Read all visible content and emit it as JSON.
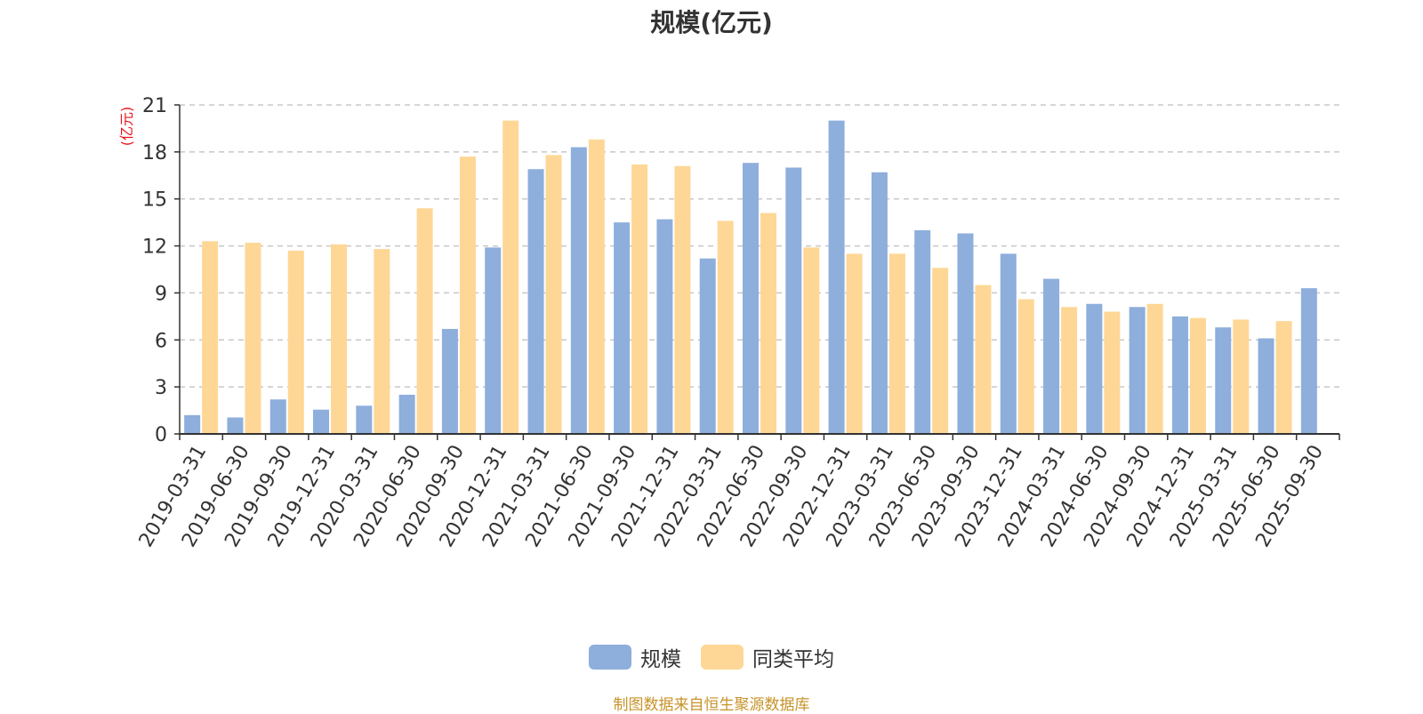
{
  "title": "规模(亿元)",
  "source": "制图数据来自恒生聚源数据库",
  "colors": {
    "series1": "#8eaedc",
    "series2": "#fed796",
    "unit_label": "#e8141c"
  },
  "chart_data": {
    "type": "bar",
    "title": "规模(亿元)",
    "ylabel": "(亿元)",
    "xlabel": "",
    "ylim": [
      0,
      21
    ],
    "yticks": [
      0,
      3,
      6,
      9,
      12,
      15,
      18,
      21
    ],
    "grid": true,
    "legend_position": "bottom",
    "categories": [
      "2019-03-31",
      "2019-06-30",
      "2019-09-30",
      "2019-12-31",
      "2020-03-31",
      "2020-06-30",
      "2020-09-30",
      "2020-12-31",
      "2021-03-31",
      "2021-06-30",
      "2021-09-30",
      "2021-12-31",
      "2022-03-31",
      "2022-06-30",
      "2022-09-30",
      "2022-12-31",
      "2023-03-31",
      "2023-06-30",
      "2023-09-30",
      "2023-12-31",
      "2024-03-31",
      "2024-06-30",
      "2024-09-30",
      "2024-12-31",
      "2025-03-31",
      "2025-06-30",
      "2025-09-30"
    ],
    "series": [
      {
        "name": "规模",
        "values": [
          1.2,
          1.05,
          2.2,
          1.55,
          1.8,
          2.5,
          6.7,
          11.9,
          16.9,
          18.3,
          13.5,
          13.7,
          11.2,
          17.3,
          17.0,
          20.0,
          16.7,
          13.0,
          12.8,
          11.5,
          9.9,
          8.3,
          8.1,
          7.5,
          6.8,
          6.1,
          9.3
        ]
      },
      {
        "name": "同类平均",
        "values": [
          12.3,
          12.2,
          11.7,
          12.1,
          11.8,
          14.4,
          17.7,
          20.0,
          17.8,
          18.8,
          17.2,
          17.1,
          13.6,
          14.1,
          11.9,
          11.5,
          11.5,
          10.6,
          9.5,
          8.6,
          8.1,
          7.8,
          8.3,
          7.4,
          7.3,
          7.2,
          null
        ]
      }
    ]
  }
}
